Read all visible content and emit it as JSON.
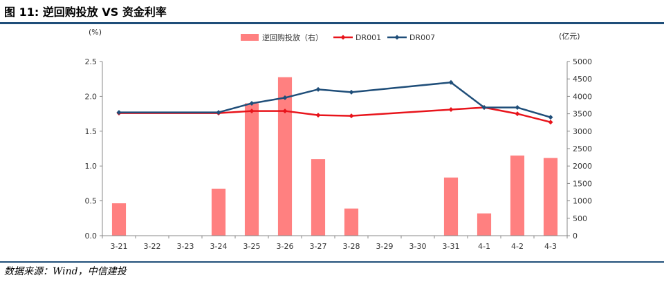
{
  "header": {
    "title": "图 11: 逆回购投放 VS 资金利率"
  },
  "footer": {
    "source": "数据来源：Wind，中信建投"
  },
  "chart_data": {
    "type": "bar+line",
    "categories": [
      "3-21",
      "3-22",
      "3-23",
      "3-24",
      "3-25",
      "3-26",
      "3-27",
      "3-28",
      "3-29",
      "3-30",
      "3-31",
      "4-1",
      "4-2",
      "4-3"
    ],
    "left_axis": {
      "label": "(%)",
      "ylim": [
        0,
        2.5
      ],
      "ticks": [
        "0.0",
        "0.5",
        "1.0",
        "1.5",
        "2.0",
        "2.5"
      ]
    },
    "right_axis": {
      "label": "(亿元)",
      "ylim": [
        0,
        5000
      ],
      "ticks": [
        "0",
        "500",
        "1000",
        "1500",
        "2000",
        "2500",
        "3000",
        "3500",
        "4000",
        "4500",
        "5000"
      ]
    },
    "legend": {
      "placement": "top-center"
    },
    "series": [
      {
        "name": "逆回购投放（右）",
        "type": "bar",
        "axis": "right",
        "color": "#ff8080",
        "values": [
          930,
          null,
          null,
          1350,
          3800,
          4550,
          2200,
          780,
          null,
          null,
          1670,
          640,
          2300,
          2230
        ]
      },
      {
        "name": "DR001",
        "type": "line",
        "axis": "left",
        "color": "#e8141b",
        "values": [
          1.76,
          null,
          null,
          1.76,
          1.79,
          1.79,
          1.73,
          1.72,
          null,
          null,
          1.81,
          1.84,
          1.75,
          1.63
        ]
      },
      {
        "name": "DR007",
        "type": "line",
        "axis": "left",
        "color": "#1f4e79",
        "values": [
          1.77,
          null,
          null,
          1.77,
          1.9,
          1.98,
          2.1,
          2.06,
          null,
          null,
          2.2,
          1.84,
          1.84,
          1.7
        ]
      }
    ]
  }
}
